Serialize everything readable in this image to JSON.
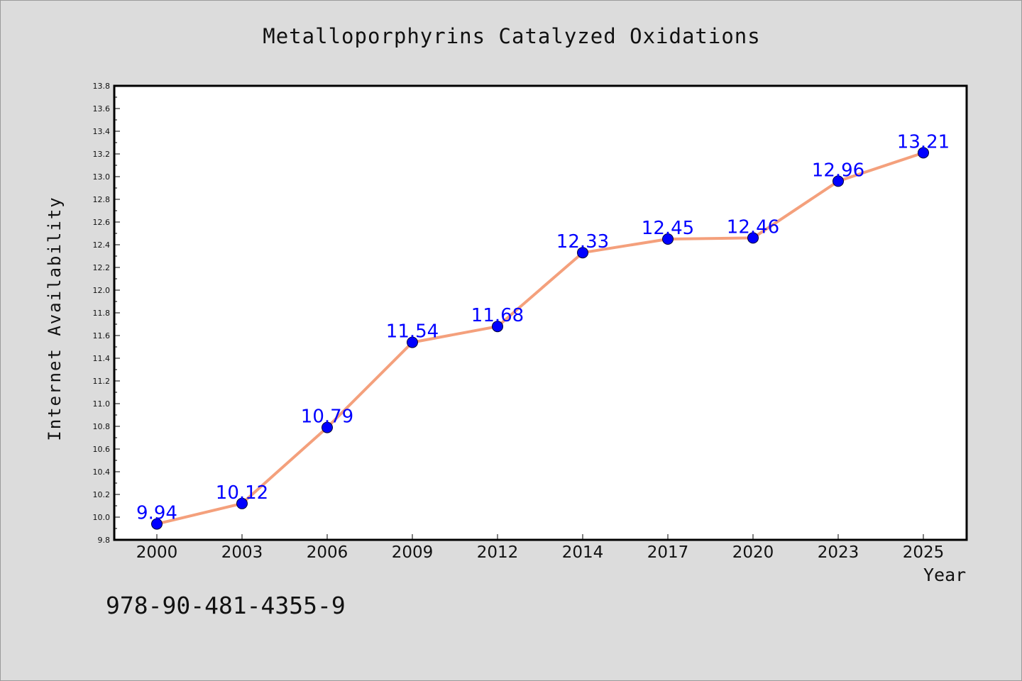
{
  "chart_data": {
    "type": "line",
    "title": "Metalloporphyrins Catalyzed Oxidations",
    "xlabel": "Year",
    "ylabel": "Internet Availability",
    "categories": [
      "2000",
      "2003",
      "2006",
      "2009",
      "2012",
      "2014",
      "2017",
      "2020",
      "2023",
      "2025"
    ],
    "series": [
      {
        "values": [
          9.94,
          10.12,
          10.79,
          11.54,
          11.68,
          12.33,
          12.45,
          12.46,
          12.96,
          13.21
        ],
        "data_labels": [
          "9.94",
          "10.12",
          "10.79",
          "11.54",
          "11.68",
          "12.33",
          "12.45",
          "12.46",
          "12.96",
          "13.21"
        ],
        "line_color": "#f4a07c",
        "marker_color": "#0000ff",
        "label_color": "#0000ff"
      }
    ],
    "ylim": [
      9.8,
      13.8
    ],
    "yticks": [
      "9.8",
      "10.0",
      "10.2",
      "10.4",
      "10.6",
      "10.8",
      "11.0",
      "11.2",
      "11.4",
      "11.6",
      "11.8",
      "12.0",
      "12.2",
      "12.4",
      "12.6",
      "12.8",
      "13.0",
      "13.2",
      "13.4",
      "13.6",
      "13.8"
    ],
    "grid": false,
    "legend": "none",
    "background": "#dcdcdc",
    "plot_background": "#ffffff"
  },
  "footer": {
    "code": "978-90-481-4355-9"
  }
}
